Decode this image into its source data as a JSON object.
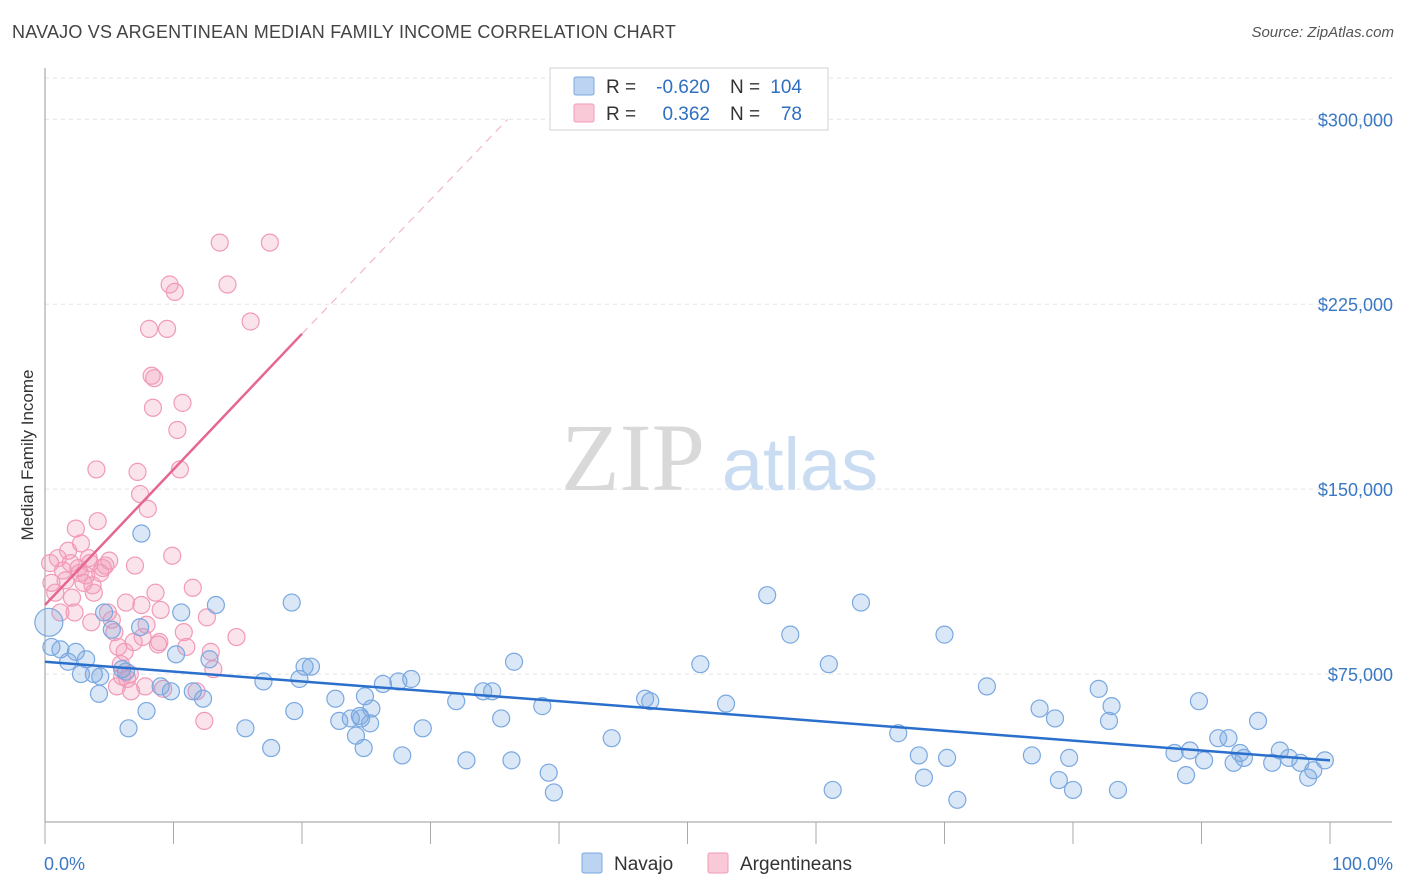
{
  "title": "NAVAJO VS ARGENTINEAN MEDIAN FAMILY INCOME CORRELATION CHART",
  "source": "Source: ZipAtlas.com",
  "watermark": {
    "zip": "ZIP",
    "atlas": "atlas"
  },
  "chart_data": {
    "type": "scatter",
    "xlabel": "",
    "ylabel": "Median Family Income",
    "xlim": [
      0,
      100
    ],
    "ylim": [
      15000,
      320000
    ],
    "x_tick_labels": [
      "0.0%",
      "100.0%"
    ],
    "y_ticks": [
      75000,
      150000,
      225000,
      300000
    ],
    "y_tick_labels": [
      "$75,000",
      "$150,000",
      "$225,000",
      "$300,000"
    ],
    "grid": true,
    "legend_position": "top-center",
    "colors": {
      "navajo": "#7aa8e0",
      "navajo_line": "#2a6fcc",
      "argentineans": "#f19ab8",
      "argentineans_line": "#e6668f"
    },
    "stats": [
      {
        "r_label": "R =",
        "r": "-0.620",
        "n_label": "N =",
        "n": "104"
      },
      {
        "r_label": "R =",
        "r": "0.362",
        "n_label": "N =",
        "n": "78"
      }
    ],
    "series": [
      {
        "name": "Navajo",
        "trend": {
          "x": [
            0,
            100
          ],
          "y": [
            80000,
            40000
          ]
        },
        "points": [
          [
            0.3,
            96000
          ],
          [
            0.5,
            86000
          ],
          [
            1.2,
            85000
          ],
          [
            1.8,
            80000
          ],
          [
            2.4,
            84000
          ],
          [
            2.8,
            75000
          ],
          [
            3.2,
            81000
          ],
          [
            3.8,
            75000
          ],
          [
            4.3,
            74000
          ],
          [
            4.2,
            67000
          ],
          [
            4.6,
            100000
          ],
          [
            5.2,
            93000
          ],
          [
            6.0,
            77000
          ],
          [
            6.3,
            76000
          ],
          [
            6.5,
            53000
          ],
          [
            7.4,
            94000
          ],
          [
            7.5,
            132000
          ],
          [
            7.9,
            60000
          ],
          [
            9.0,
            70000
          ],
          [
            9.8,
            68000
          ],
          [
            10.2,
            83000
          ],
          [
            10.6,
            100000
          ],
          [
            11.5,
            68000
          ],
          [
            12.3,
            65000
          ],
          [
            12.8,
            81000
          ],
          [
            13.3,
            103000
          ],
          [
            15.6,
            53000
          ],
          [
            17.0,
            72000
          ],
          [
            17.6,
            45000
          ],
          [
            19.2,
            104000
          ],
          [
            19.4,
            60000
          ],
          [
            19.8,
            73000
          ],
          [
            20.2,
            78000
          ],
          [
            20.7,
            78000
          ],
          [
            22.6,
            65000
          ],
          [
            22.9,
            56000
          ],
          [
            23.8,
            57000
          ],
          [
            24.2,
            50000
          ],
          [
            24.5,
            58000
          ],
          [
            24.8,
            45000
          ],
          [
            24.6,
            57000
          ],
          [
            24.9,
            66000
          ],
          [
            25.3,
            55000
          ],
          [
            25.4,
            61000
          ],
          [
            26.3,
            71000
          ],
          [
            27.5,
            72000
          ],
          [
            27.8,
            42000
          ],
          [
            28.5,
            73000
          ],
          [
            29.4,
            53000
          ],
          [
            32.0,
            64000
          ],
          [
            32.8,
            40000
          ],
          [
            34.1,
            68000
          ],
          [
            34.8,
            68000
          ],
          [
            35.5,
            57000
          ],
          [
            36.3,
            40000
          ],
          [
            36.5,
            80000
          ],
          [
            38.7,
            62000
          ],
          [
            39.2,
            35000
          ],
          [
            39.6,
            27000
          ],
          [
            44.1,
            49000
          ],
          [
            46.7,
            65000
          ],
          [
            47.1,
            64000
          ],
          [
            51.0,
            79000
          ],
          [
            53.0,
            63000
          ],
          [
            56.2,
            107000
          ],
          [
            58.0,
            91000
          ],
          [
            61.0,
            79000
          ],
          [
            61.3,
            28000
          ],
          [
            63.5,
            104000
          ],
          [
            66.4,
            51000
          ],
          [
            68.0,
            42000
          ],
          [
            68.4,
            33000
          ],
          [
            70.2,
            41000
          ],
          [
            71.0,
            24000
          ],
          [
            70.0,
            91000
          ],
          [
            73.3,
            70000
          ],
          [
            76.8,
            42000
          ],
          [
            77.4,
            61000
          ],
          [
            78.6,
            57000
          ],
          [
            78.9,
            32000
          ],
          [
            79.7,
            41000
          ],
          [
            80.0,
            28000
          ],
          [
            82.0,
            69000
          ],
          [
            83.0,
            62000
          ],
          [
            82.8,
            56000
          ],
          [
            83.5,
            28000
          ],
          [
            87.9,
            43000
          ],
          [
            88.8,
            34000
          ],
          [
            89.1,
            44000
          ],
          [
            89.8,
            64000
          ],
          [
            90.2,
            40000
          ],
          [
            91.3,
            49000
          ],
          [
            92.1,
            49000
          ],
          [
            92.5,
            39000
          ],
          [
            93.0,
            43000
          ],
          [
            93.3,
            41000
          ],
          [
            94.4,
            56000
          ],
          [
            95.5,
            39000
          ],
          [
            96.1,
            44000
          ],
          [
            96.8,
            41000
          ],
          [
            97.7,
            39000
          ],
          [
            98.3,
            33000
          ],
          [
            98.7,
            36000
          ],
          [
            99.6,
            40000
          ]
        ]
      },
      {
        "name": "Argentineans",
        "trend": {
          "x": [
            0,
            20
          ],
          "y": [
            103000,
            213000
          ]
        },
        "trend_extension": {
          "x": [
            20,
            36
          ],
          "y": [
            213000,
            300000
          ]
        },
        "points": [
          [
            0.4,
            120000
          ],
          [
            0.5,
            112000
          ],
          [
            0.8,
            108000
          ],
          [
            1.0,
            122000
          ],
          [
            1.2,
            100000
          ],
          [
            1.4,
            117000
          ],
          [
            1.6,
            113000
          ],
          [
            1.8,
            125000
          ],
          [
            2.0,
            120000
          ],
          [
            2.1,
            106000
          ],
          [
            2.3,
            100000
          ],
          [
            2.4,
            134000
          ],
          [
            2.6,
            118000
          ],
          [
            2.7,
            116000
          ],
          [
            2.8,
            128000
          ],
          [
            3.0,
            112000
          ],
          [
            3.2,
            115000
          ],
          [
            3.4,
            122000
          ],
          [
            3.5,
            120000
          ],
          [
            3.6,
            96000
          ],
          [
            3.7,
            111000
          ],
          [
            3.8,
            108000
          ],
          [
            4.0,
            158000
          ],
          [
            4.1,
            137000
          ],
          [
            4.3,
            116000
          ],
          [
            4.5,
            118000
          ],
          [
            4.7,
            119000
          ],
          [
            4.9,
            100000
          ],
          [
            5.0,
            121000
          ],
          [
            5.2,
            97000
          ],
          [
            5.4,
            92000
          ],
          [
            5.6,
            70000
          ],
          [
            5.7,
            86000
          ],
          [
            5.9,
            79000
          ],
          [
            6.0,
            74000
          ],
          [
            6.2,
            84000
          ],
          [
            6.3,
            104000
          ],
          [
            6.4,
            73000
          ],
          [
            6.6,
            75000
          ],
          [
            6.7,
            68000
          ],
          [
            6.9,
            88000
          ],
          [
            7.0,
            119000
          ],
          [
            7.2,
            157000
          ],
          [
            7.4,
            148000
          ],
          [
            7.5,
            103000
          ],
          [
            7.6,
            90000
          ],
          [
            7.8,
            70000
          ],
          [
            7.9,
            95000
          ],
          [
            8.0,
            142000
          ],
          [
            8.1,
            215000
          ],
          [
            8.3,
            196000
          ],
          [
            8.4,
            183000
          ],
          [
            8.5,
            195000
          ],
          [
            8.6,
            108000
          ],
          [
            8.8,
            87000
          ],
          [
            8.9,
            88000
          ],
          [
            9.0,
            101000
          ],
          [
            9.2,
            69000
          ],
          [
            9.5,
            215000
          ],
          [
            9.7,
            233000
          ],
          [
            9.9,
            123000
          ],
          [
            10.1,
            230000
          ],
          [
            10.3,
            174000
          ],
          [
            10.5,
            158000
          ],
          [
            10.7,
            185000
          ],
          [
            10.8,
            92000
          ],
          [
            11.0,
            86000
          ],
          [
            11.5,
            110000
          ],
          [
            11.8,
            68000
          ],
          [
            12.4,
            56000
          ],
          [
            12.6,
            98000
          ],
          [
            12.9,
            84000
          ],
          [
            13.1,
            77000
          ],
          [
            13.6,
            250000
          ],
          [
            14.2,
            233000
          ],
          [
            14.9,
            90000
          ],
          [
            16.0,
            218000
          ],
          [
            17.5,
            250000
          ]
        ]
      }
    ]
  },
  "bottom_legend": [
    {
      "label": "Navajo"
    },
    {
      "label": "Argentineans"
    }
  ]
}
